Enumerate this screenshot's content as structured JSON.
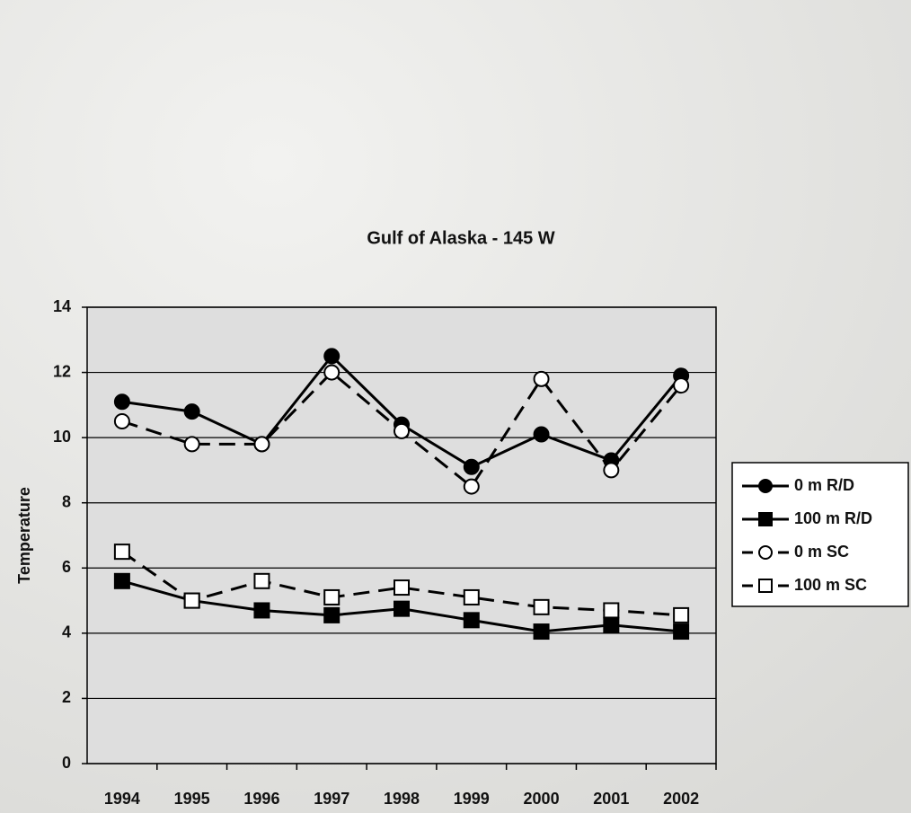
{
  "chart_data": {
    "type": "line",
    "title": "Gulf of Alaska - 145 W",
    "y_label": "Temperature",
    "categories": [
      "1994",
      "1995",
      "1996",
      "1997",
      "1998",
      "1999",
      "2000",
      "2001",
      "2002"
    ],
    "series": [
      {
        "name": "0 m R/D",
        "color": "#000000",
        "line_style": "solid",
        "marker": "circle",
        "marker_fill": "#000000",
        "values": [
          11.1,
          10.8,
          9.8,
          12.5,
          10.4,
          9.1,
          10.1,
          9.3,
          11.9
        ]
      },
      {
        "name": "100 m R/D",
        "color": "#000000",
        "line_style": "solid",
        "marker": "square",
        "marker_fill": "#000000",
        "values": [
          5.6,
          5.0,
          4.7,
          4.55,
          4.75,
          4.4,
          4.05,
          4.25,
          4.05
        ]
      },
      {
        "name": "0 m SC",
        "color": "#000000",
        "line_style": "dashed",
        "marker": "circle",
        "marker_fill": "#ffffff",
        "values": [
          10.5,
          9.8,
          9.8,
          12.0,
          10.2,
          8.5,
          11.8,
          9.0,
          11.6
        ]
      },
      {
        "name": "100 m SC",
        "color": "#000000",
        "line_style": "dashed",
        "marker": "square",
        "marker_fill": "#ffffff",
        "values": [
          6.5,
          5.0,
          5.6,
          5.1,
          5.4,
          5.1,
          4.8,
          4.7,
          4.55
        ]
      }
    ],
    "ylim": [
      0,
      14
    ],
    "yticks": [
      0,
      2,
      4,
      6,
      8,
      10,
      12,
      14
    ],
    "grid": true,
    "legend": "right"
  }
}
